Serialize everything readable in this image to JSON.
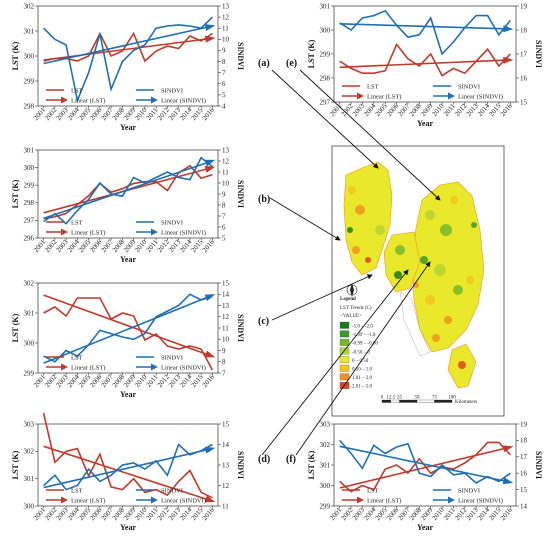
{
  "panel_labels": [
    "(a)",
    "(b)",
    "(c)",
    "(d)",
    "(e)",
    "(f)"
  ],
  "colors": {
    "lst": "#c0392b",
    "sindvi": "#1f6fb4"
  },
  "map": {
    "legend_title": "Legend",
    "legend_subtitle": "LST Trends (C)",
    "value_label": "<VALUE>",
    "classes": [
      {
        "label": "-5.0 – -2.0",
        "color": "#1a7a1a"
      },
      {
        "label": "-1.99 – -1.0",
        "color": "#3c9a2a"
      },
      {
        "label": "-0.99 – -0.50",
        "color": "#76b82a"
      },
      {
        "label": "-0.50 – 0",
        "color": "#b5d334"
      },
      {
        "label": "0 – 0.50",
        "color": "#e9e82a"
      },
      {
        "label": "0.50 – 1.0",
        "color": "#f5c321"
      },
      {
        "label": "1.01 – 2.0",
        "color": "#f29220"
      },
      {
        "label": "2.01 – 5.0",
        "color": "#e0441b"
      }
    ],
    "scale_ticks": [
      "0",
      "12.5",
      "25",
      "50",
      "75",
      "100"
    ],
    "scale_unit": "Kilometers"
  },
  "chart_data": [
    {
      "type": "line",
      "panel": "a",
      "x": [
        2001,
        2002,
        2003,
        2004,
        2005,
        2006,
        2007,
        2008,
        2009,
        2010,
        2011,
        2012,
        2013,
        2014,
        2015,
        2016
      ],
      "xlabel": "Year",
      "ylabel": "LST (K)",
      "y2label": "SINDVI",
      "ylim": [
        298,
        302
      ],
      "yticks": [
        298,
        299,
        300,
        301,
        302
      ],
      "y2lim": [
        4,
        13
      ],
      "y2ticks": [
        4,
        5,
        6,
        7,
        8,
        9,
        10,
        11,
        12,
        13
      ],
      "legend": [
        "LST",
        "SINDVI",
        "Linear (LST)",
        "Linear (SINDVI)"
      ],
      "series": [
        {
          "name": "LST",
          "axis": "left",
          "values": [
            299.8,
            299.9,
            299.9,
            299.8,
            300.0,
            300.9,
            300.0,
            300.2,
            300.9,
            299.8,
            300.2,
            300.4,
            300.3,
            300.8,
            300.6,
            300.9
          ]
        },
        {
          "name": "SINDVI",
          "axis": "right",
          "values": [
            11.0,
            10.0,
            9.5,
            4.5,
            7.0,
            10.5,
            5.5,
            8.0,
            9.0,
            9.5,
            11.0,
            11.2,
            11.3,
            11.2,
            11.0,
            12.0
          ]
        }
      ]
    },
    {
      "type": "line",
      "panel": "b",
      "x": [
        2001,
        2002,
        2003,
        2004,
        2005,
        2006,
        2007,
        2008,
        2009,
        2010,
        2011,
        2012,
        2013,
        2014,
        2015,
        2016
      ],
      "xlabel": "Year",
      "ylabel": "LST (K)",
      "y2label": "SINDVI",
      "ylim": [
        296,
        301
      ],
      "yticks": [
        296,
        297,
        298,
        299,
        300,
        301
      ],
      "y2lim": [
        5,
        13
      ],
      "y2ticks": [
        5,
        6,
        7,
        8,
        9,
        10,
        11,
        12,
        13
      ],
      "legend": [
        "LST",
        "SINDVI",
        "Linear (LST)",
        "Linear (SINDVI)"
      ],
      "series": [
        {
          "name": "LST",
          "axis": "left",
          "values": [
            297.1,
            297.2,
            297.4,
            297.9,
            298.4,
            299.1,
            298.6,
            298.8,
            299.1,
            299.2,
            299.2,
            298.7,
            299.7,
            300.1,
            299.4,
            299.6
          ]
        },
        {
          "name": "SINDVI",
          "axis": "right",
          "values": [
            6.5,
            7.2,
            6.3,
            7.5,
            8.5,
            10.0,
            9.0,
            8.8,
            10.5,
            10.0,
            10.5,
            11.0,
            10.5,
            10.3,
            12.3,
            11.5
          ]
        }
      ]
    },
    {
      "type": "line",
      "panel": "c",
      "x": [
        2001,
        2002,
        2003,
        2004,
        2005,
        2006,
        2007,
        2008,
        2009,
        2010,
        2011,
        2012,
        2013,
        2014,
        2015,
        2016
      ],
      "xlabel": "Year",
      "ylabel": "LST (K)",
      "y2label": "SINDVI",
      "ylim": [
        299,
        302
      ],
      "yticks": [
        299,
        300,
        301,
        302
      ],
      "y2lim": [
        7,
        15
      ],
      "y2ticks": [
        7,
        8,
        9,
        10,
        11,
        12,
        13,
        14,
        15
      ],
      "legend": [
        "LST",
        "SINDVI",
        "Linear (LST)",
        "Linear (SINDVI)"
      ],
      "series": [
        {
          "name": "LST",
          "axis": "left",
          "values": [
            301.0,
            301.2,
            300.9,
            301.5,
            301.5,
            301.5,
            300.8,
            301.0,
            300.9,
            300.1,
            300.3,
            299.9,
            299.8,
            299.9,
            299.8,
            299.1
          ]
        },
        {
          "name": "SINDVI",
          "axis": "right",
          "values": [
            8.5,
            8.0,
            9.0,
            8.5,
            9.5,
            10.8,
            10.5,
            10.2,
            10.0,
            10.5,
            12.0,
            12.5,
            13.0,
            14.0,
            13.5,
            13.8
          ]
        }
      ]
    },
    {
      "type": "line",
      "panel": "d",
      "x": [
        2001,
        2002,
        2003,
        2004,
        2005,
        2006,
        2007,
        2008,
        2009,
        2010,
        2011,
        2012,
        2013,
        2014,
        2015,
        2016
      ],
      "xlabel": "Year",
      "ylabel": "LST (K)",
      "y2label": "SINDVI",
      "ylim": [
        300,
        303
      ],
      "yticks": [
        300,
        301,
        302,
        303
      ],
      "y2lim": [
        11,
        15
      ],
      "y2ticks": [
        11,
        12,
        13,
        14,
        15
      ],
      "legend": [
        "LST",
        "SINDVI",
        "Linear (LST)",
        "Linear (SINDVI)"
      ],
      "series": [
        {
          "name": "LST",
          "axis": "left",
          "values": [
            303.4,
            301.6,
            302.0,
            302.1,
            301.1,
            301.9,
            300.7,
            300.6,
            301.0,
            300.5,
            300.6,
            300.4,
            300.9,
            301.3,
            300.5,
            300.3
          ]
        },
        {
          "name": "SINDVI",
          "axis": "right",
          "values": [
            12.0,
            12.5,
            11.8,
            12.0,
            12.8,
            12.2,
            12.5,
            13.0,
            13.1,
            12.8,
            13.2,
            12.5,
            14.0,
            13.5,
            13.7,
            14.0
          ]
        }
      ]
    },
    {
      "type": "line",
      "panel": "e",
      "x": [
        2001,
        2002,
        2003,
        2004,
        2005,
        2006,
        2007,
        2008,
        2009,
        2010,
        2011,
        2012,
        2013,
        2014,
        2015,
        2016
      ],
      "xlabel": "Year",
      "ylabel": "LST (K)",
      "y2label": "SINDVI",
      "ylim": [
        297,
        301
      ],
      "yticks": [
        297,
        298,
        299,
        300,
        301
      ],
      "y2lim": [
        15,
        19
      ],
      "y2ticks": [
        15,
        16,
        17,
        18,
        19
      ],
      "legend": [
        "LST",
        "SINDVI",
        "Linear (LST)",
        "Linear (SINDVI)"
      ],
      "series": [
        {
          "name": "LST",
          "axis": "left",
          "values": [
            298.7,
            298.4,
            298.2,
            298.2,
            298.3,
            299.4,
            298.8,
            298.5,
            299.0,
            298.1,
            298.4,
            298.2,
            298.7,
            299.2,
            298.5,
            299.0
          ]
        },
        {
          "name": "SINDVI",
          "axis": "right",
          "values": [
            18.3,
            18.0,
            18.5,
            18.6,
            18.8,
            18.2,
            17.7,
            17.8,
            18.5,
            17.0,
            17.5,
            18.1,
            18.6,
            18.6,
            17.8,
            18.4
          ]
        }
      ]
    },
    {
      "type": "line",
      "panel": "f",
      "x": [
        2001,
        2002,
        2003,
        2004,
        2005,
        2006,
        2007,
        2008,
        2009,
        2010,
        2011,
        2012,
        2013,
        2014,
        2015,
        2016
      ],
      "xlabel": "Year",
      "ylabel": "LST (K)",
      "y2label": "SINDVI",
      "ylim": [
        299,
        303
      ],
      "yticks": [
        299,
        300,
        301,
        302,
        303
      ],
      "y2lim": [
        14,
        19
      ],
      "y2ticks": [
        14,
        15,
        16,
        17,
        18,
        19
      ],
      "legend": [
        "LST",
        "SINDVI",
        "Linear (LST)",
        "Linear (SINDVI)"
      ],
      "series": [
        {
          "name": "LST",
          "axis": "left",
          "values": [
            300.2,
            299.7,
            300.0,
            299.8,
            300.8,
            301.0,
            300.6,
            301.3,
            300.6,
            300.9,
            300.8,
            301.1,
            301.5,
            302.1,
            302.1,
            301.5
          ]
        },
        {
          "name": "SINDVI",
          "axis": "right",
          "values": [
            18.0,
            17.2,
            16.3,
            17.7,
            17.2,
            17.6,
            17.8,
            16.0,
            15.8,
            16.5,
            15.9,
            16.0,
            15.4,
            15.8,
            15.5,
            16.0
          ]
        }
      ]
    }
  ]
}
